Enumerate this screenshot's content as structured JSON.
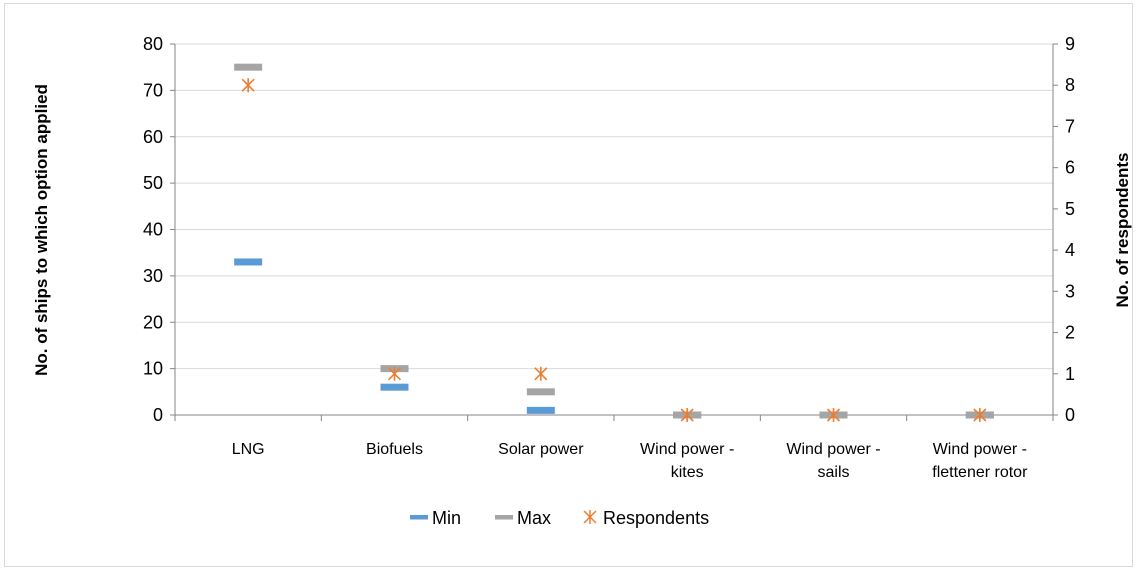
{
  "chart_data": {
    "type": "scatter",
    "categories": [
      [
        "LNG"
      ],
      [
        "Biofuels"
      ],
      [
        "Solar power"
      ],
      [
        "Wind power -",
        "kites"
      ],
      [
        "Wind power -",
        "sails"
      ],
      [
        "Wind power -",
        "flettener rotor"
      ]
    ],
    "ylabel": "No. of ships to which option applied",
    "y2label": "No. of respondents",
    "ylim": [
      0,
      80
    ],
    "y2lim": [
      0,
      9
    ],
    "yticks": [
      "0",
      "10",
      "20",
      "30",
      "40",
      "50",
      "60",
      "70",
      "80"
    ],
    "y2ticks": [
      "0",
      "1",
      "2",
      "3",
      "4",
      "5",
      "6",
      "7",
      "8",
      "9"
    ],
    "grid": true,
    "legend_position": "bottom",
    "series": [
      {
        "name": "Min",
        "axis": "left",
        "marker": "dash",
        "color": "#5b9bd5",
        "values": [
          33,
          6,
          1,
          0,
          0,
          0
        ]
      },
      {
        "name": "Max",
        "axis": "left",
        "marker": "dash",
        "color": "#a5a5a5",
        "values": [
          75,
          10,
          5,
          0,
          0,
          0
        ]
      },
      {
        "name": "Respondents",
        "axis": "right",
        "marker": "star",
        "color": "#ed7d31",
        "values": [
          8,
          1,
          1,
          0,
          0,
          0
        ]
      }
    ]
  }
}
